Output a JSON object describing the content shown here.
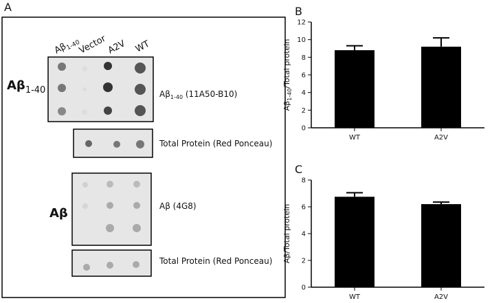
{
  "panel_a": {
    "letter": "A",
    "columns": [
      {
        "main": "Aβ",
        "sub": "1-40"
      },
      "Vector",
      "A2V",
      "WT"
    ],
    "row_labels": [
      {
        "main": "Aβ",
        "sub": "1-40"
      },
      "Aβ"
    ],
    "blot_labels": [
      {
        "main": "Aβ",
        "sub": "1-40",
        "rest": " (11A50-B10)"
      },
      "Total Protein (Red Ponceau)",
      "Aβ  (4G8)",
      "Total Protein (Red Ponceau)"
    ]
  },
  "chart_data": [
    {
      "type": "bar",
      "panel": "B",
      "ylabel": {
        "main": "Aβ",
        "sub": "1-40",
        "rest": "/Total protein"
      },
      "categories": [
        "WT",
        "A2V"
      ],
      "values": [
        8.8,
        9.2
      ],
      "errors": [
        0.5,
        1.0
      ],
      "color": "#000000",
      "ylim": [
        0,
        12
      ],
      "yticks": [
        0,
        2,
        4,
        6,
        8,
        10,
        12
      ]
    },
    {
      "type": "bar",
      "panel": "C",
      "ylabel": {
        "main": "Aβ",
        "rest": "/Total protein"
      },
      "categories": [
        "WT",
        "A2V"
      ],
      "values": [
        6.75,
        6.2
      ],
      "errors": [
        0.3,
        0.15
      ],
      "color": "#000000",
      "ylim": [
        0,
        8
      ],
      "yticks": [
        0,
        2,
        4,
        6,
        8
      ]
    }
  ]
}
